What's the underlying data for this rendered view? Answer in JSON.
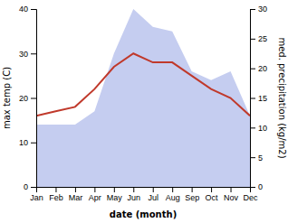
{
  "chart_data": {
    "type": "line",
    "categories": [
      "Jan",
      "Feb",
      "Mar",
      "Apr",
      "May",
      "Jun",
      "Jul",
      "Aug",
      "Sep",
      "Oct",
      "Nov",
      "Dec"
    ],
    "series": [
      {
        "type": "area",
        "color": "#c5cdf0",
        "values": [
          14,
          14,
          14,
          17,
          30,
          40,
          36,
          35,
          26,
          24,
          26,
          16
        ]
      },
      {
        "type": "line",
        "color": "#c0392b",
        "values": [
          16,
          17,
          18,
          22,
          27,
          30,
          28,
          28,
          25,
          22,
          20,
          16
        ]
      }
    ],
    "xlabel": "date (month)",
    "ylabel": "max temp (C)",
    "y2label": "med. precipitation (kg/m2)",
    "ylim": [
      0,
      40
    ],
    "yticks": [
      0,
      10,
      20,
      30,
      40
    ],
    "y2lim": [
      0,
      30
    ],
    "y2ticks": [
      0,
      5,
      10,
      15,
      20,
      25,
      30
    ],
    "grid": false
  }
}
